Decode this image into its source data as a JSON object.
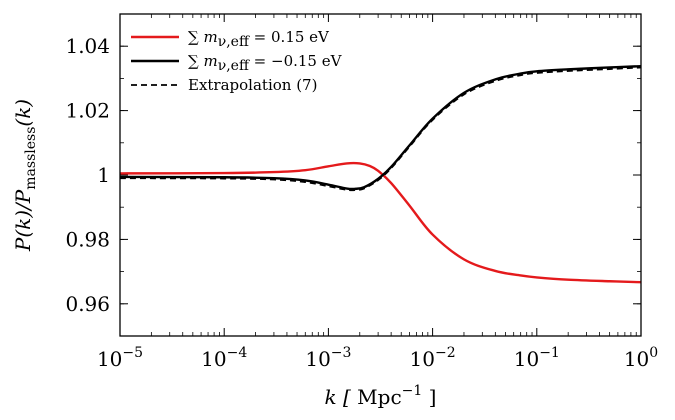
{
  "chart_data": {
    "type": "line",
    "xscale": "log",
    "xlim": [
      1e-05,
      1
    ],
    "ylim": [
      0.95,
      1.05
    ],
    "xticks": [
      {
        "value": 1e-05,
        "base": "10",
        "exp": "−5"
      },
      {
        "value": 0.0001,
        "base": "10",
        "exp": "−4"
      },
      {
        "value": 0.001,
        "base": "10",
        "exp": "−3"
      },
      {
        "value": 0.01,
        "base": "10",
        "exp": "−2"
      },
      {
        "value": 0.1,
        "base": "10",
        "exp": "−1"
      },
      {
        "value": 1,
        "base": "10",
        "exp": "0"
      }
    ],
    "yticks": [
      {
        "value": 0.96,
        "label": "0.96"
      },
      {
        "value": 0.98,
        "label": "0.98"
      },
      {
        "value": 1.0,
        "label": "1"
      },
      {
        "value": 1.02,
        "label": "1.02"
      },
      {
        "value": 1.04,
        "label": "1.04"
      }
    ],
    "xlabel": {
      "var": "k",
      "unit": "Mpc",
      "unit_exp": "−1"
    },
    "ylabel": {
      "text": "P(k)/P",
      "sub": "massless",
      "tail": "(k)"
    },
    "legend_position": "top-left",
    "grid": false,
    "series": [
      {
        "name": "∑ m_ν,eff = 0.15 eV",
        "legend_main": "∑ m",
        "legend_sub": "ν,eff",
        "legend_tail": " = 0.15 eV",
        "color": "#e41a1c",
        "style": "solid",
        "x": [
          1e-05,
          0.0001,
          0.0003,
          0.0006,
          0.001,
          0.0015,
          0.002,
          0.0025,
          0.003,
          0.004,
          0.006,
          0.01,
          0.02,
          0.04,
          0.07,
          0.1,
          0.2,
          0.5,
          1
        ],
        "y": [
          1.0005,
          1.0006,
          1.0009,
          1.0015,
          1.0027,
          1.0036,
          1.0036,
          1.0028,
          1.0013,
          0.9975,
          0.9905,
          0.9815,
          0.9738,
          0.9702,
          0.9688,
          0.9682,
          0.9675,
          0.967,
          0.9667
        ]
      },
      {
        "name": "∑ m_ν,eff = −0.15 eV",
        "legend_main": "∑ m",
        "legend_sub": "ν,eff",
        "legend_tail": " = −0.15 eV",
        "color": "#000000",
        "style": "solid",
        "x": [
          1e-05,
          0.0001,
          0.0003,
          0.0006,
          0.001,
          0.0015,
          0.0018,
          0.0022,
          0.003,
          0.004,
          0.006,
          0.01,
          0.02,
          0.04,
          0.07,
          0.1,
          0.2,
          0.5,
          1
        ],
        "y": [
          0.9994,
          0.9993,
          0.999,
          0.9983,
          0.997,
          0.9958,
          0.9957,
          0.9962,
          0.9988,
          1.0025,
          1.0092,
          1.0175,
          1.0255,
          1.0297,
          1.0315,
          1.0322,
          1.0328,
          1.0334,
          1.0338
        ]
      },
      {
        "name": "Extrapolation (7)",
        "legend_main": "Extrapolation (7)",
        "legend_sub": "",
        "legend_tail": "",
        "color": "#000000",
        "style": "dashed",
        "x": [
          1e-05,
          0.0001,
          0.0003,
          0.0006,
          0.001,
          0.0015,
          0.0018,
          0.0022,
          0.003,
          0.004,
          0.006,
          0.01,
          0.02,
          0.04,
          0.07,
          0.1,
          0.2,
          0.5,
          1
        ],
        "y": [
          0.999,
          0.9989,
          0.9986,
          0.9978,
          0.9965,
          0.9954,
          0.9953,
          0.9958,
          0.9984,
          1.0021,
          1.0088,
          1.0171,
          1.025,
          1.0292,
          1.031,
          1.0317,
          1.0323,
          1.0329,
          1.0334
        ]
      }
    ]
  }
}
